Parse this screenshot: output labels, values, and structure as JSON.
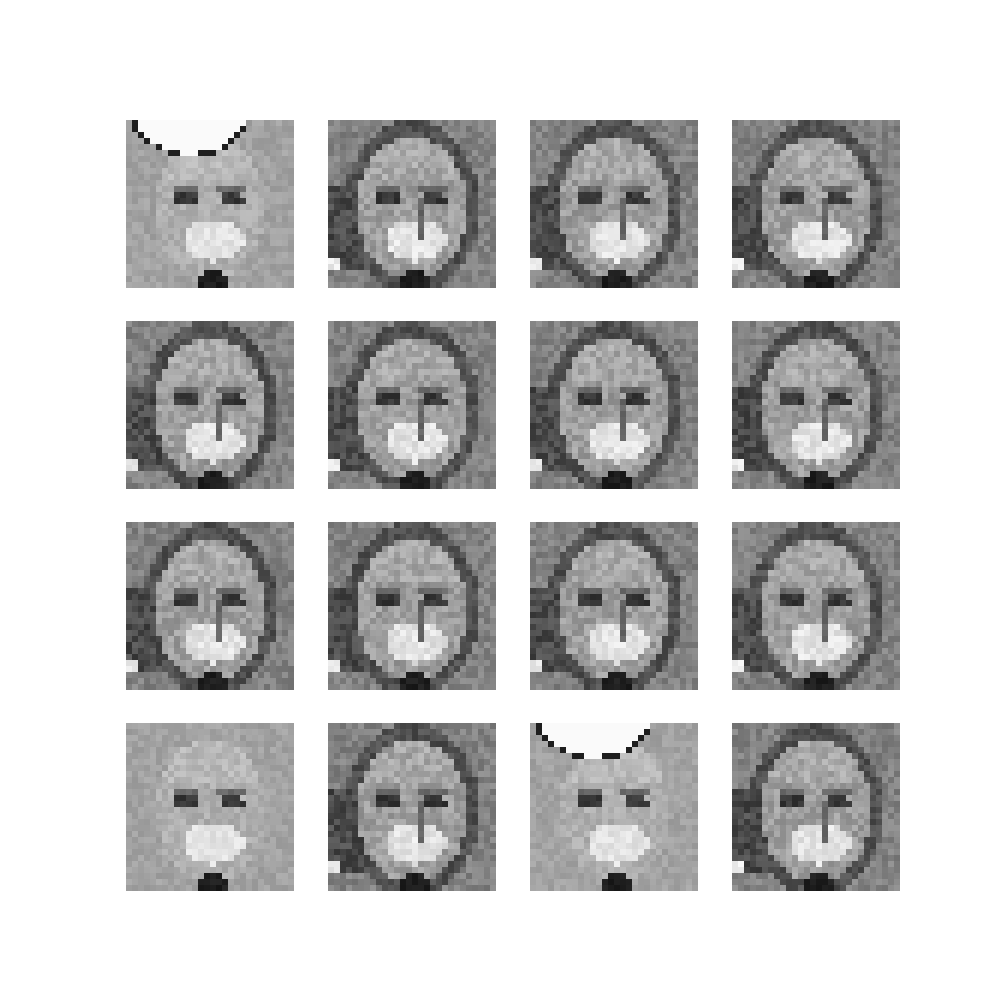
{
  "figure": {
    "grid": {
      "rows": 4,
      "columns": 4
    },
    "tiles": [
      {
        "variant": "light-cap"
      },
      {
        "variant": "dark"
      },
      {
        "variant": "dark"
      },
      {
        "variant": "dark"
      },
      {
        "variant": "dark"
      },
      {
        "variant": "dark"
      },
      {
        "variant": "dark"
      },
      {
        "variant": "dark"
      },
      {
        "variant": "dark"
      },
      {
        "variant": "dark"
      },
      {
        "variant": "dark"
      },
      {
        "variant": "dark"
      },
      {
        "variant": "light"
      },
      {
        "variant": "dark"
      },
      {
        "variant": "light-cap"
      },
      {
        "variant": "dark"
      }
    ],
    "colors": {
      "background": "#ffffff",
      "tile_base": "#8f8f8f"
    }
  }
}
